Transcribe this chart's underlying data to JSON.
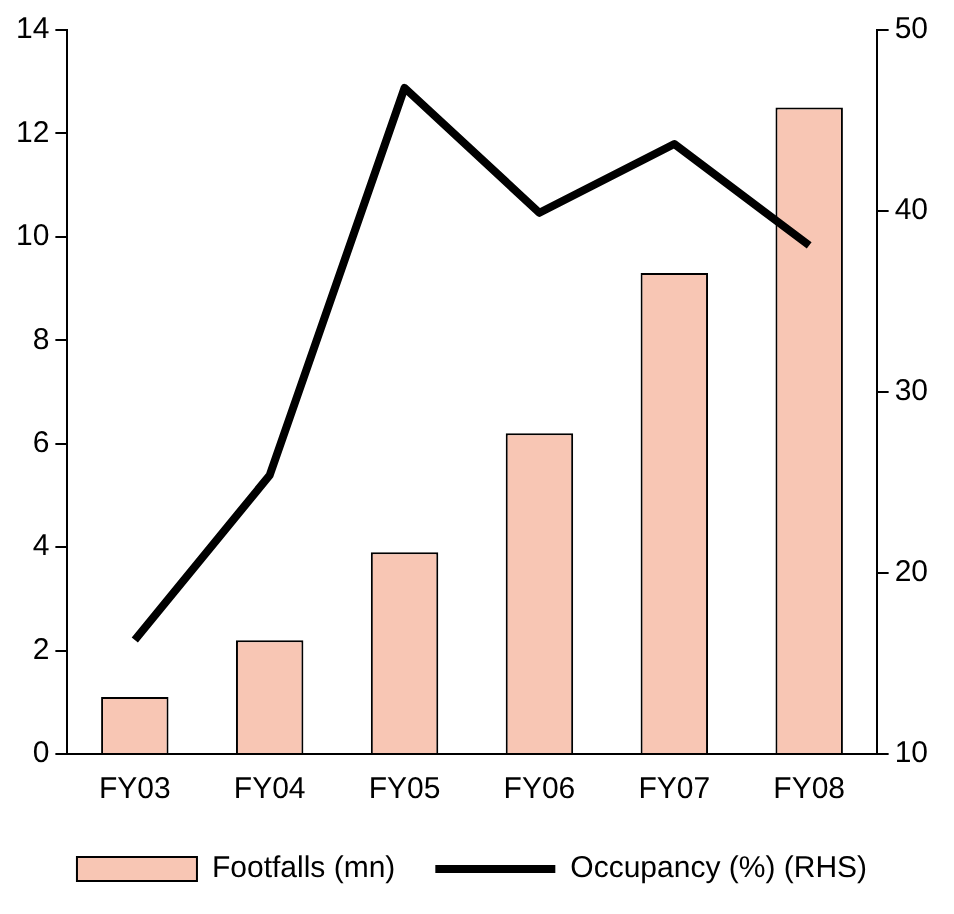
{
  "chart_data": {
    "type": "bar",
    "categories": [
      "FY03",
      "FY04",
      "FY05",
      "FY06",
      "FY07",
      "FY08"
    ],
    "series": [
      {
        "name": "Footfalls (mn)",
        "color": "#f8c6b4",
        "values": [
          1.1,
          2.2,
          3.9,
          6.2,
          9.3,
          12.5
        ]
      },
      {
        "name": "Occupancy (%) (RHS)",
        "type": "line",
        "axis": "y2",
        "color": "#000000",
        "values": [
          16.3,
          25.4,
          46.8,
          39.9,
          43.7,
          38.1
        ]
      }
    ],
    "ylim": [
      0,
      14
    ],
    "yticks": [
      0,
      2,
      4,
      6,
      8,
      10,
      12,
      14
    ],
    "y2lim": [
      10,
      50
    ],
    "y2ticks": [
      10,
      20,
      30,
      40,
      50
    ],
    "grid": false,
    "legend": "bottom",
    "marker": "none",
    "line_style": "solid"
  }
}
